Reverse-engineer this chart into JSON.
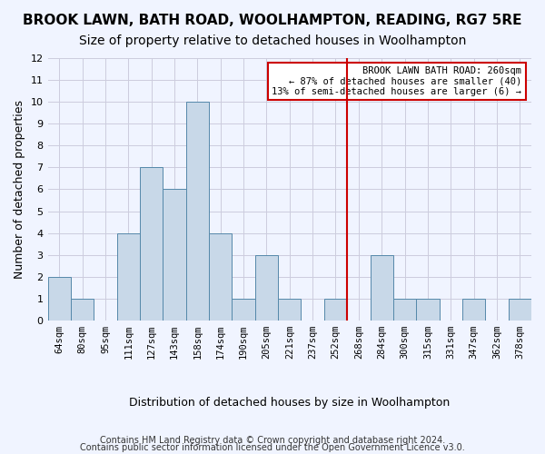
{
  "title": "BROOK LAWN, BATH ROAD, WOOLHAMPTON, READING, RG7 5RE",
  "subtitle": "Size of property relative to detached houses in Woolhampton",
  "xlabel": "Distribution of detached houses by size in Woolhampton",
  "ylabel": "Number of detached properties",
  "footer1": "Contains HM Land Registry data © Crown copyright and database right 2024.",
  "footer2": "Contains public sector information licensed under the Open Government Licence v3.0.",
  "annotation_title": "BROOK LAWN BATH ROAD: 260sqm",
  "annotation_line1": "← 87% of detached houses are smaller (40)",
  "annotation_line2": "13% of semi-detached houses are larger (6) →",
  "bar_color": "#c8d8e8",
  "bar_edge_color": "#5588aa",
  "vline_color": "#cc0000",
  "vline_x": 9,
  "categories": [
    "64sqm",
    "80sqm",
    "95sqm",
    "111sqm",
    "127sqm",
    "143sqm",
    "158sqm",
    "174sqm",
    "190sqm",
    "205sqm",
    "221sqm",
    "237sqm",
    "252sqm",
    "268sqm",
    "284sqm",
    "300sqm",
    "315sqm",
    "331sqm",
    "347sqm",
    "362sqm",
    "378sqm"
  ],
  "values": [
    2,
    1,
    0,
    4,
    7,
    6,
    10,
    4,
    1,
    3,
    1,
    0,
    1,
    0,
    3,
    1,
    1,
    0,
    1,
    0,
    1
  ],
  "ylim": [
    0,
    12
  ],
  "yticks": [
    0,
    1,
    2,
    3,
    4,
    5,
    6,
    7,
    8,
    9,
    10,
    11,
    12
  ],
  "background_color": "#f0f4ff",
  "grid_color": "#ccccdd",
  "title_fontsize": 11,
  "subtitle_fontsize": 10,
  "axis_fontsize": 9,
  "tick_fontsize": 7.5,
  "footer_fontsize": 7
}
